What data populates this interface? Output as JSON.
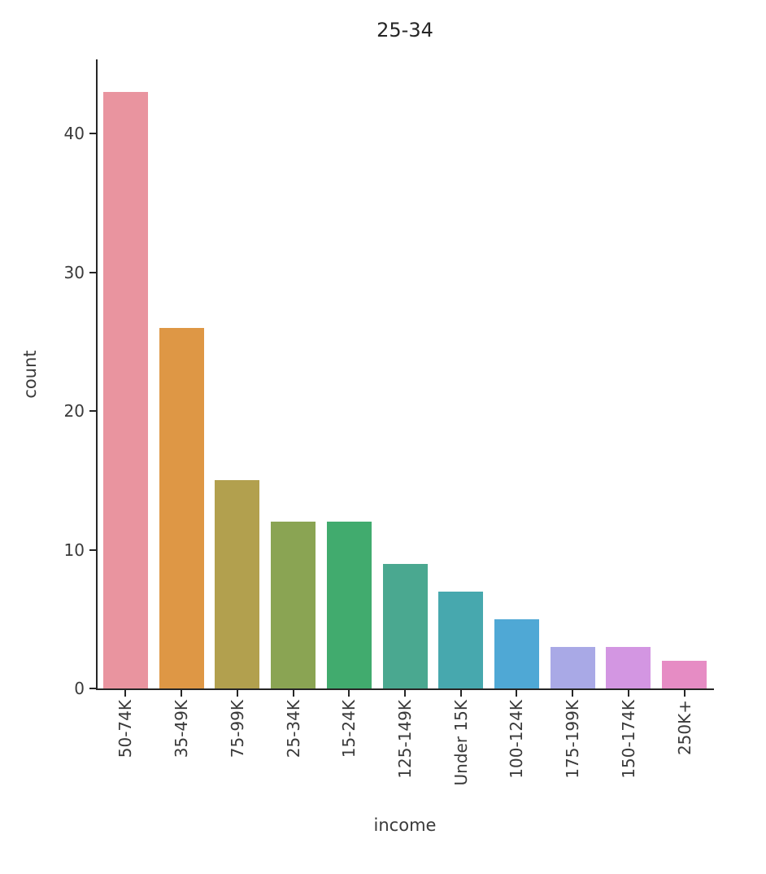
{
  "chart_data": {
    "type": "bar",
    "title": "25-34",
    "xlabel": "income",
    "ylabel": "count",
    "categories": [
      "50-74K",
      "35-49K",
      "75-99K",
      "25-34K",
      "15-24K",
      "125-149K",
      "Under 15K",
      "100-124K",
      "175-199K",
      "150-174K",
      "250K+"
    ],
    "values": [
      43,
      26,
      15,
      12,
      12,
      9,
      7,
      5,
      3,
      3,
      2
    ],
    "bar_colors": [
      "#e9949f",
      "#de9745",
      "#b2a04e",
      "#8aa453",
      "#41ab6e",
      "#4aa890",
      "#47a8ae",
      "#4fa8d5",
      "#a9a9e6",
      "#d396e2",
      "#e68cc4"
    ],
    "yticks": [
      0,
      10,
      20,
      30,
      40
    ],
    "ylim": [
      0,
      45.5
    ],
    "xtick_rotation": 90,
    "grid": false,
    "legend": "none",
    "axis_color": "#262626",
    "text_color": "#3a3a3a"
  }
}
